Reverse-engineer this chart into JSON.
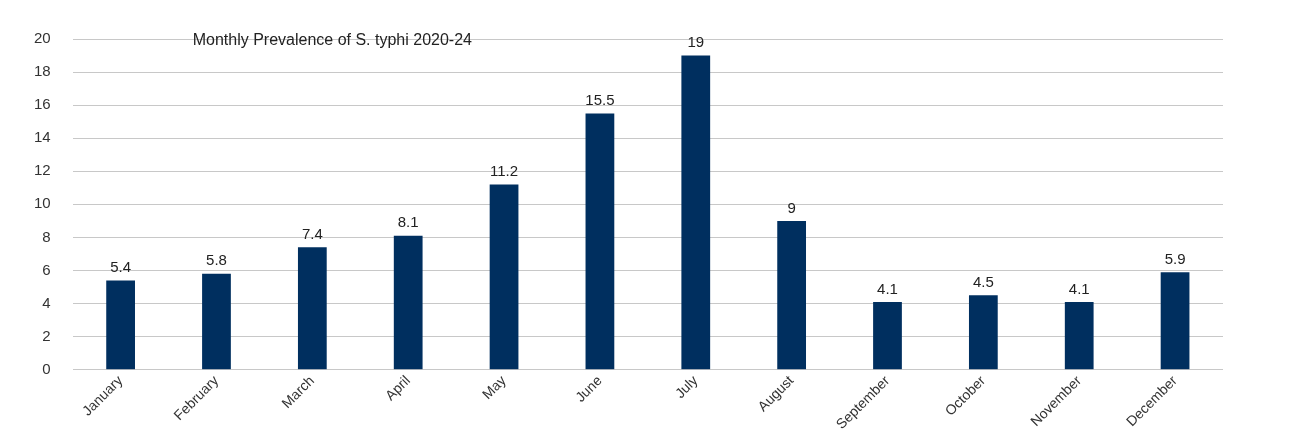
{
  "chart_data": {
    "type": "bar",
    "title": "Monthly Prevalence of S. typhi 2020-24",
    "categories": [
      "January",
      "February",
      "March",
      "April",
      "May",
      "June",
      "July",
      "August",
      "September",
      "October",
      "November",
      "December"
    ],
    "values": [
      5.4,
      5.8,
      7.4,
      8.1,
      11.2,
      15.5,
      19,
      9,
      4.1,
      4.5,
      4.1,
      5.9
    ],
    "color": "#002f5f",
    "ylim": [
      0,
      20
    ],
    "yticks": [
      0,
      2,
      4,
      6,
      8,
      10,
      12,
      14,
      16,
      18,
      20
    ],
    "grid": "y",
    "data_labels": true
  }
}
